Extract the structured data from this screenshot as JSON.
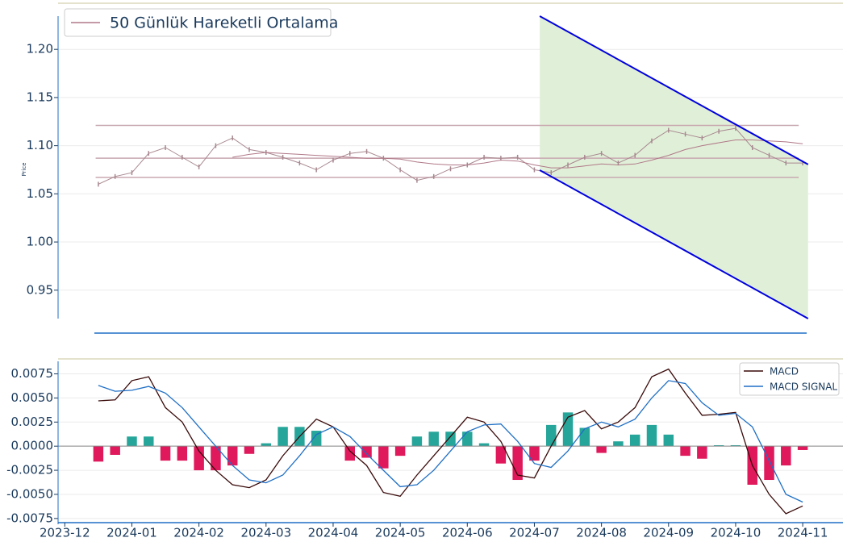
{
  "chart_data": [
    {
      "type": "line",
      "ylabel": "Price",
      "x": [
        0.5,
        0.75,
        1.0,
        1.25,
        1.5,
        1.75,
        2.0,
        2.25,
        2.5,
        2.75,
        3.0,
        3.25,
        3.5,
        3.75,
        4.0,
        4.25,
        4.5,
        4.75,
        5.0,
        5.25,
        5.5,
        5.75,
        6.0,
        6.25,
        6.5,
        6.75,
        7.0,
        7.25,
        7.5,
        7.75,
        8.0,
        8.25,
        8.5,
        8.75,
        9.0,
        9.25,
        9.5,
        9.75,
        10.0,
        10.25,
        10.5,
        10.75,
        11.0
      ],
      "series": [
        {
          "color": "#a88890",
          "values": [
            1.06,
            1.068,
            1.072,
            1.092,
            1.098,
            1.088,
            1.078,
            1.1,
            1.108,
            1.096,
            1.093,
            1.088,
            1.082,
            1.075,
            1.085,
            1.092,
            1.094,
            1.087,
            1.075,
            1.064,
            1.068,
            1.076,
            1.08,
            1.088,
            1.087,
            1.088,
            1.075,
            1.072,
            1.08,
            1.088,
            1.092,
            1.082,
            1.09,
            1.105,
            1.116,
            1.112,
            1.108,
            1.115,
            1.118,
            1.098,
            1.09,
            1.082,
            1.082
          ]
        },
        {
          "name": "50 Günlük Hareketli Ortalama",
          "color": "#b07888",
          "values": [
            null,
            null,
            null,
            null,
            null,
            null,
            null,
            null,
            1.088,
            1.091,
            1.093,
            1.092,
            1.091,
            1.09,
            1.089,
            1.088,
            1.087,
            1.087,
            1.086,
            1.083,
            1.081,
            1.08,
            1.08,
            1.082,
            1.085,
            1.084,
            1.08,
            1.077,
            1.077,
            1.079,
            1.081,
            1.08,
            1.081,
            1.085,
            1.09,
            1.096,
            1.1,
            1.103,
            1.106,
            1.106,
            1.105,
            1.104,
            1.102
          ]
        }
      ],
      "hlines": [
        1.121,
        1.087,
        1.067
      ],
      "hline_color": "#c8a8b0",
      "hline_span": [
        0.46,
        10.94
      ],
      "channel": {
        "x": [
          7.08,
          11.08
        ],
        "upper": [
          1.2345,
          1.0805
        ],
        "lower": [
          1.0746,
          0.9205
        ],
        "color": "#0000dd",
        "fill": "#e0f0d8"
      },
      "xlim": [
        -0.1,
        11.6
      ],
      "ylim": [
        0.9205,
        1.2345
      ],
      "yticks": [
        0.95,
        {
          "value": 1,
          "label": "1.00"
        },
        1.05,
        {
          "value": 1.1,
          "label": "1.10"
        },
        1.15,
        {
          "value": 1.2,
          "label": "1.20"
        }
      ],
      "grid": true,
      "legend": "upper left"
    },
    {
      "type": "macd",
      "x": [
        0.5,
        0.75,
        1.0,
        1.25,
        1.5,
        1.75,
        2.0,
        2.25,
        2.5,
        2.75,
        3.0,
        3.25,
        3.5,
        3.75,
        4.0,
        4.25,
        4.5,
        4.75,
        5.0,
        5.25,
        5.5,
        5.75,
        6.0,
        6.25,
        6.5,
        6.75,
        7.0,
        7.25,
        7.5,
        7.75,
        8.0,
        8.25,
        8.5,
        8.75,
        9.0,
        9.25,
        9.5,
        9.75,
        10.0,
        10.25,
        10.5,
        10.75,
        11.0
      ],
      "series": [
        {
          "name": "MACD",
          "color": "#3a0a0a",
          "values": [
            0.0047,
            0.0048,
            0.0068,
            0.0072,
            0.004,
            0.0025,
            -0.0005,
            -0.0025,
            -0.004,
            -0.0043,
            -0.0035,
            -0.001,
            0.001,
            0.0028,
            0.002,
            -0.0005,
            -0.002,
            -0.0048,
            -0.0052,
            -0.003,
            -0.001,
            0.001,
            0.003,
            0.0025,
            0.0005,
            -0.003,
            -0.0033,
            0.0,
            0.003,
            0.0037,
            0.0018,
            0.0025,
            0.004,
            0.0072,
            0.008,
            0.0055,
            0.0032,
            0.0033,
            0.0035,
            -0.002,
            -0.005,
            -0.007,
            -0.0062
          ]
        },
        {
          "name": "MACD SIGNAL",
          "color": "#1f6fc5",
          "values": [
            0.0063,
            0.0057,
            0.0058,
            0.0062,
            0.0055,
            0.004,
            0.002,
            0.0,
            -0.002,
            -0.0035,
            -0.0038,
            -0.003,
            -0.001,
            0.0012,
            0.002,
            0.001,
            -0.0008,
            -0.0025,
            -0.0042,
            -0.004,
            -0.0025,
            -0.0005,
            0.0015,
            0.0022,
            0.0023,
            0.0005,
            -0.0018,
            -0.0022,
            -0.0005,
            0.0018,
            0.0025,
            0.002,
            0.0028,
            0.005,
            0.0068,
            0.0065,
            0.0045,
            0.0032,
            0.0034,
            0.002,
            -0.0015,
            -0.005,
            -0.0058
          ]
        }
      ],
      "histogram": [
        -0.0016,
        -0.0009,
        0.001,
        0.001,
        -0.0015,
        -0.0015,
        -0.0025,
        -0.0025,
        -0.002,
        -0.0008,
        0.0003,
        0.002,
        0.002,
        0.0016,
        0.0,
        -0.0015,
        -0.0012,
        -0.0023,
        -0.001,
        0.001,
        0.0015,
        0.0015,
        0.0015,
        0.0003,
        -0.0018,
        -0.0035,
        -0.0015,
        0.0022,
        0.0035,
        0.0019,
        -0.0007,
        0.0005,
        0.0012,
        0.0022,
        0.0012,
        -0.001,
        -0.0013,
        0.0001,
        0.0001,
        -0.004,
        -0.0035,
        -0.002,
        -0.0004
      ],
      "pos_color": "#26a69a",
      "neg_color": "#e0185c",
      "xlim": [
        -0.1,
        11.6
      ],
      "xticks": [
        {
          "value": 0,
          "label": "2023-12"
        },
        {
          "value": 1,
          "label": "2024-01"
        },
        {
          "value": 2,
          "label": "2024-02"
        },
        {
          "value": 3,
          "label": "2024-03"
        },
        {
          "value": 4,
          "label": "2024-04"
        },
        {
          "value": 5,
          "label": "2024-05"
        },
        {
          "value": 6,
          "label": "2024-06"
        },
        {
          "value": 7,
          "label": "2024-07"
        },
        {
          "value": 8,
          "label": "2024-08"
        },
        {
          "value": 9,
          "label": "2024-09"
        },
        {
          "value": 10,
          "label": "2024-10"
        },
        {
          "value": 11,
          "label": "2024-11"
        }
      ],
      "ylim": [
        -0.0081,
        0.0088
      ],
      "yticks": [
        0.0075,
        {
          "value": 0.005,
          "label": "0.0050"
        },
        0.0025,
        {
          "value": 0,
          "label": "0.0000"
        },
        -0.0025,
        {
          "value": -0.005,
          "label": "-0.0050"
        },
        -0.0075
      ],
      "grid": true,
      "legend": "upper right"
    }
  ]
}
